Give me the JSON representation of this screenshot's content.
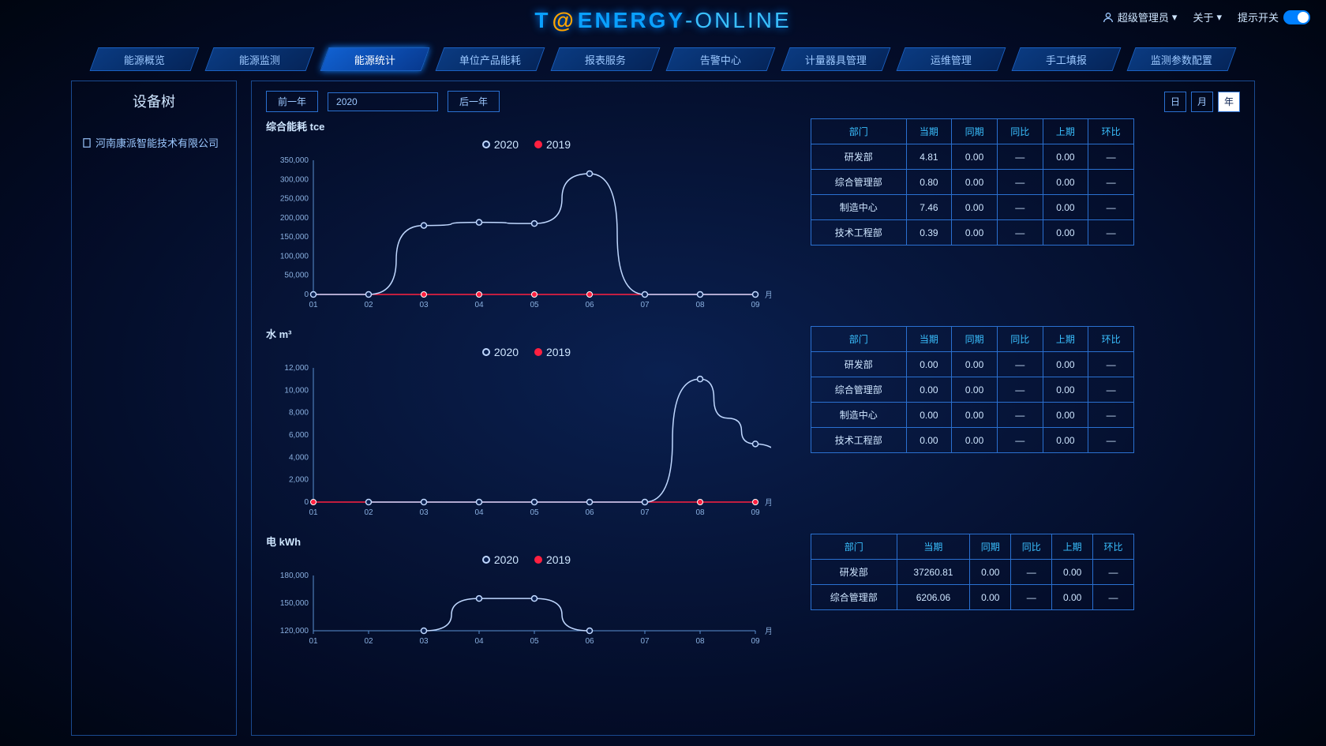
{
  "brand": {
    "t": "T",
    "at": "@",
    "energy": "ENERGY",
    "dash": "-",
    "online": "ONLINE"
  },
  "header": {
    "user": "超级管理员",
    "about": "关于",
    "toggle_label": "提示开关"
  },
  "nav": {
    "items": [
      "能源概览",
      "能源监测",
      "能源统计",
      "单位产品能耗",
      "报表服务",
      "告警中心",
      "计量器具管理",
      "运维管理",
      "手工填报",
      "监测参数配置"
    ],
    "active_index": 2
  },
  "sidebar": {
    "title": "设备树",
    "tree_root": "河南康派智能技术有限公司"
  },
  "toolbar": {
    "prev": "前一年",
    "year": "2020",
    "next": "后一年",
    "periods": [
      "日",
      "月",
      "年"
    ],
    "active_period": 2
  },
  "legend": {
    "s1": "2020",
    "s2": "2019"
  },
  "colors": {
    "series1": "#c0d8ff",
    "series2": "#ff2040",
    "grid": "#1a3a6a",
    "axis": "#5a90d0",
    "text": "#8ab0e0",
    "table_border": "#2a70d0"
  },
  "x_axis": {
    "label": "月",
    "ticks": [
      "01",
      "02",
      "03",
      "04",
      "05",
      "06",
      "07",
      "08",
      "09"
    ]
  },
  "charts": [
    {
      "title": "综合能耗 tce",
      "y_ticks": [
        0,
        50000,
        100000,
        150000,
        200000,
        250000,
        300000,
        350000
      ],
      "y_labels": [
        "0",
        "50,000",
        "100,000",
        "150,000",
        "200,000",
        "250,000",
        "300,000",
        "350,000"
      ],
      "series1": [
        0,
        0,
        180000,
        188000,
        185000,
        315000,
        0,
        0,
        0
      ],
      "series2": [
        0,
        0,
        0,
        0,
        0,
        0,
        0,
        0,
        0
      ]
    },
    {
      "title": "水 m³",
      "y_ticks": [
        0,
        2000,
        4000,
        6000,
        8000,
        10000,
        12000
      ],
      "y_labels": [
        "0",
        "2,000",
        "4,000",
        "6,000",
        "8,000",
        "10,000",
        "12,000"
      ],
      "series1": [
        0,
        0,
        0,
        0,
        0,
        0,
        11000,
        7500,
        5200,
        0
      ],
      "series1_x": [
        1,
        2,
        3,
        4,
        5,
        6,
        7,
        7.5,
        8,
        9
      ],
      "series2": [
        0,
        0,
        0,
        0,
        0,
        0,
        0,
        0,
        0
      ]
    },
    {
      "title": "电 kWh",
      "y_ticks": [
        120000,
        150000,
        180000
      ],
      "y_labels": [
        "120,000",
        "150,000",
        "180,000"
      ],
      "series1": [
        null,
        null,
        120000,
        155000,
        155000,
        120000,
        null,
        null,
        null
      ],
      "series2": [
        null,
        null,
        null,
        null,
        null,
        null,
        null,
        null,
        null
      ],
      "partial": true
    }
  ],
  "table_headers": [
    "部门",
    "当期",
    "同期",
    "同比",
    "上期",
    "环比"
  ],
  "tables": [
    {
      "rows": [
        [
          "研发部",
          "4.81",
          "0.00",
          "—",
          "0.00",
          "—"
        ],
        [
          "综合管理部",
          "0.80",
          "0.00",
          "—",
          "0.00",
          "—"
        ],
        [
          "制造中心",
          "7.46",
          "0.00",
          "—",
          "0.00",
          "—"
        ],
        [
          "技术工程部",
          "0.39",
          "0.00",
          "—",
          "0.00",
          "—"
        ]
      ]
    },
    {
      "rows": [
        [
          "研发部",
          "0.00",
          "0.00",
          "—",
          "0.00",
          "—"
        ],
        [
          "综合管理部",
          "0.00",
          "0.00",
          "—",
          "0.00",
          "—"
        ],
        [
          "制造中心",
          "0.00",
          "0.00",
          "—",
          "0.00",
          "—"
        ],
        [
          "技术工程部",
          "0.00",
          "0.00",
          "—",
          "0.00",
          "—"
        ]
      ]
    },
    {
      "rows": [
        [
          "研发部",
          "37260.81",
          "0.00",
          "—",
          "0.00",
          "—"
        ],
        [
          "综合管理部",
          "6206.06",
          "0.00",
          "—",
          "0.00",
          "—"
        ]
      ]
    }
  ]
}
